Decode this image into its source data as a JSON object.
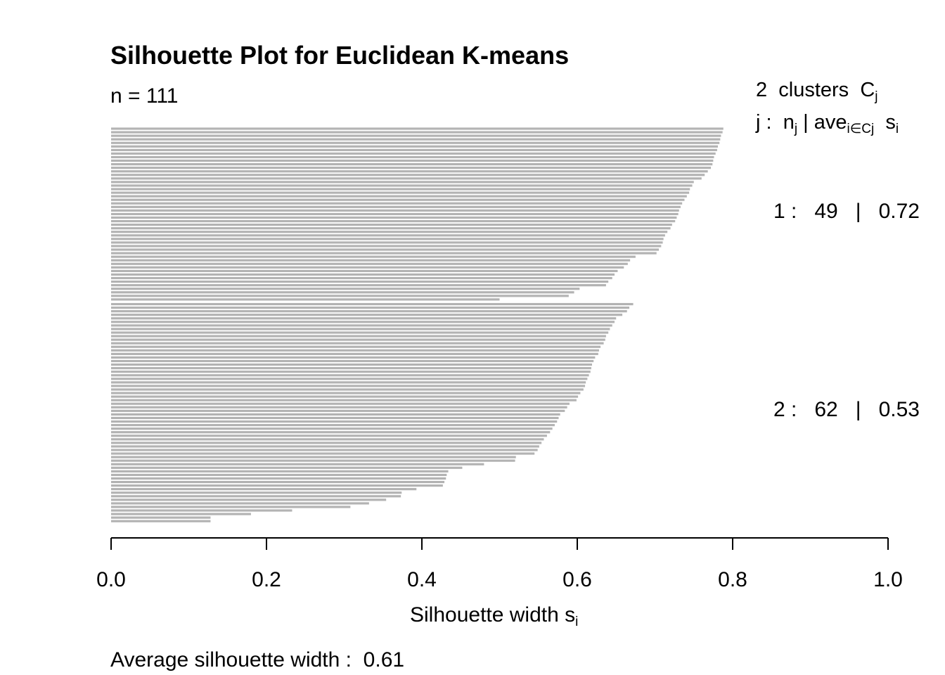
{
  "chart_data": {
    "type": "bar",
    "orientation": "horizontal",
    "title": "Silhouette Plot for Euclidean K-means",
    "n_label": "n = 111",
    "legend": {
      "num_clusters": "2",
      "clusters_word": "clusters",
      "cluster_symbol": "C",
      "cluster_symbol_sub": "j",
      "header_prefix": "j :",
      "header_n": "n",
      "header_n_sub": "j",
      "header_sep": "|",
      "header_ave": "ave",
      "header_ave_sub": "i∈Cj",
      "header_s": "s",
      "header_s_sub": "i"
    },
    "xlabel": "Silhouette width s",
    "xlabel_sub": "i",
    "xlim": [
      0.0,
      1.0
    ],
    "x_ticks": [
      "0.0",
      "0.2",
      "0.4",
      "0.6",
      "0.8",
      "1.0"
    ],
    "bar_color": "#b3b3b3",
    "clusters": [
      {
        "id": "1",
        "size": "49",
        "avg": "0.72",
        "label_id": "1 :",
        "label_n": "49",
        "label_sep": "|",
        "label_avg": "0.72",
        "values": [
          0.788,
          0.787,
          0.785,
          0.784,
          0.783,
          0.781,
          0.78,
          0.778,
          0.776,
          0.775,
          0.774,
          0.772,
          0.768,
          0.764,
          0.76,
          0.75,
          0.748,
          0.745,
          0.744,
          0.741,
          0.738,
          0.735,
          0.733,
          0.731,
          0.73,
          0.728,
          0.726,
          0.722,
          0.72,
          0.716,
          0.713,
          0.711,
          0.71,
          0.708,
          0.705,
          0.702,
          0.675,
          0.668,
          0.665,
          0.66,
          0.652,
          0.648,
          0.645,
          0.64,
          0.637,
          0.603,
          0.596,
          0.589,
          0.5
        ]
      },
      {
        "id": "2",
        "size": "62",
        "avg": "0.53",
        "label_id": "2 :",
        "label_n": "62",
        "label_sep": "|",
        "label_avg": "0.53",
        "values": [
          0.672,
          0.667,
          0.664,
          0.658,
          0.65,
          0.648,
          0.645,
          0.642,
          0.64,
          0.637,
          0.636,
          0.634,
          0.63,
          0.628,
          0.627,
          0.623,
          0.621,
          0.619,
          0.618,
          0.617,
          0.615,
          0.613,
          0.611,
          0.61,
          0.608,
          0.604,
          0.601,
          0.599,
          0.59,
          0.587,
          0.584,
          0.578,
          0.576,
          0.574,
          0.571,
          0.568,
          0.565,
          0.561,
          0.557,
          0.554,
          0.551,
          0.549,
          0.545,
          0.521,
          0.52,
          0.48,
          0.452,
          0.434,
          0.432,
          0.431,
          0.429,
          0.427,
          0.393,
          0.374,
          0.373,
          0.354,
          0.332,
          0.308,
          0.233,
          0.18,
          0.128,
          0.128
        ]
      }
    ],
    "average_label": "Average silhouette width :",
    "average_value": "0.61"
  }
}
